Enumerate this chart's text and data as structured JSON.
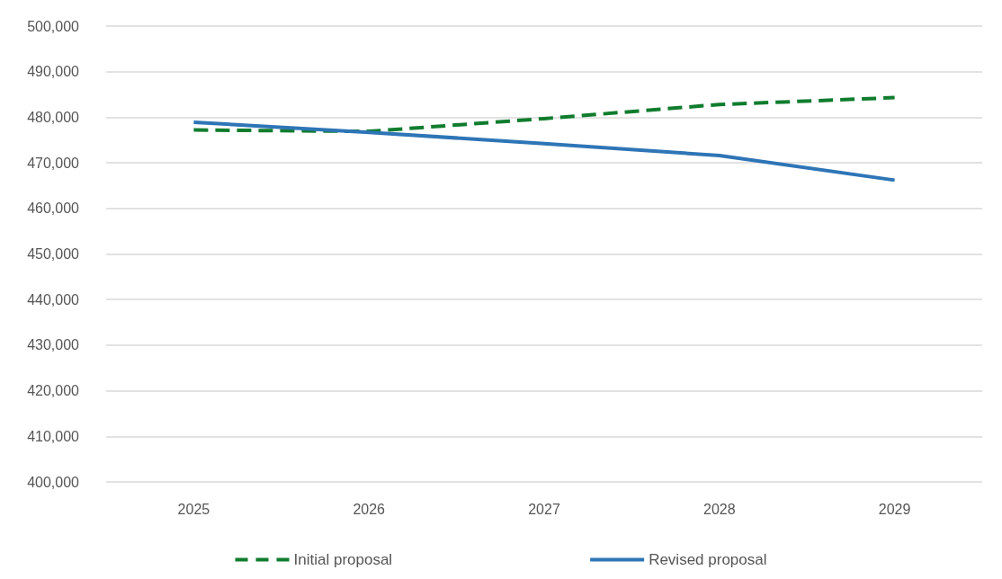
{
  "chart_data": {
    "type": "line",
    "categories": [
      "2025",
      "2026",
      "2027",
      "2028",
      "2029"
    ],
    "series": [
      {
        "name": "Initial proposal",
        "color": "#107c2e",
        "line_style": "dashed",
        "values": [
          477200,
          476900,
          479700,
          482800,
          484300
        ]
      },
      {
        "name": "Revised proposal",
        "color": "#2e75b6",
        "line_style": "solid",
        "values": [
          478900,
          476700,
          474200,
          471600,
          466200
        ]
      }
    ],
    "ylim": [
      400000,
      500000
    ],
    "yticks": [
      {
        "value": 400000,
        "label": "400,000"
      },
      {
        "value": 410000,
        "label": "410,000"
      },
      {
        "value": 420000,
        "label": "420,000"
      },
      {
        "value": 430000,
        "label": "430,000"
      },
      {
        "value": 440000,
        "label": "440,000"
      },
      {
        "value": 450000,
        "label": "450,000"
      },
      {
        "value": 460000,
        "label": "460,000"
      },
      {
        "value": 470000,
        "label": "470,000"
      },
      {
        "value": 480000,
        "label": "480,000"
      },
      {
        "value": 490000,
        "label": "490,000"
      },
      {
        "value": 500000,
        "label": "500,000"
      }
    ],
    "grid": "y",
    "legend": "bottom",
    "marker": "none"
  }
}
